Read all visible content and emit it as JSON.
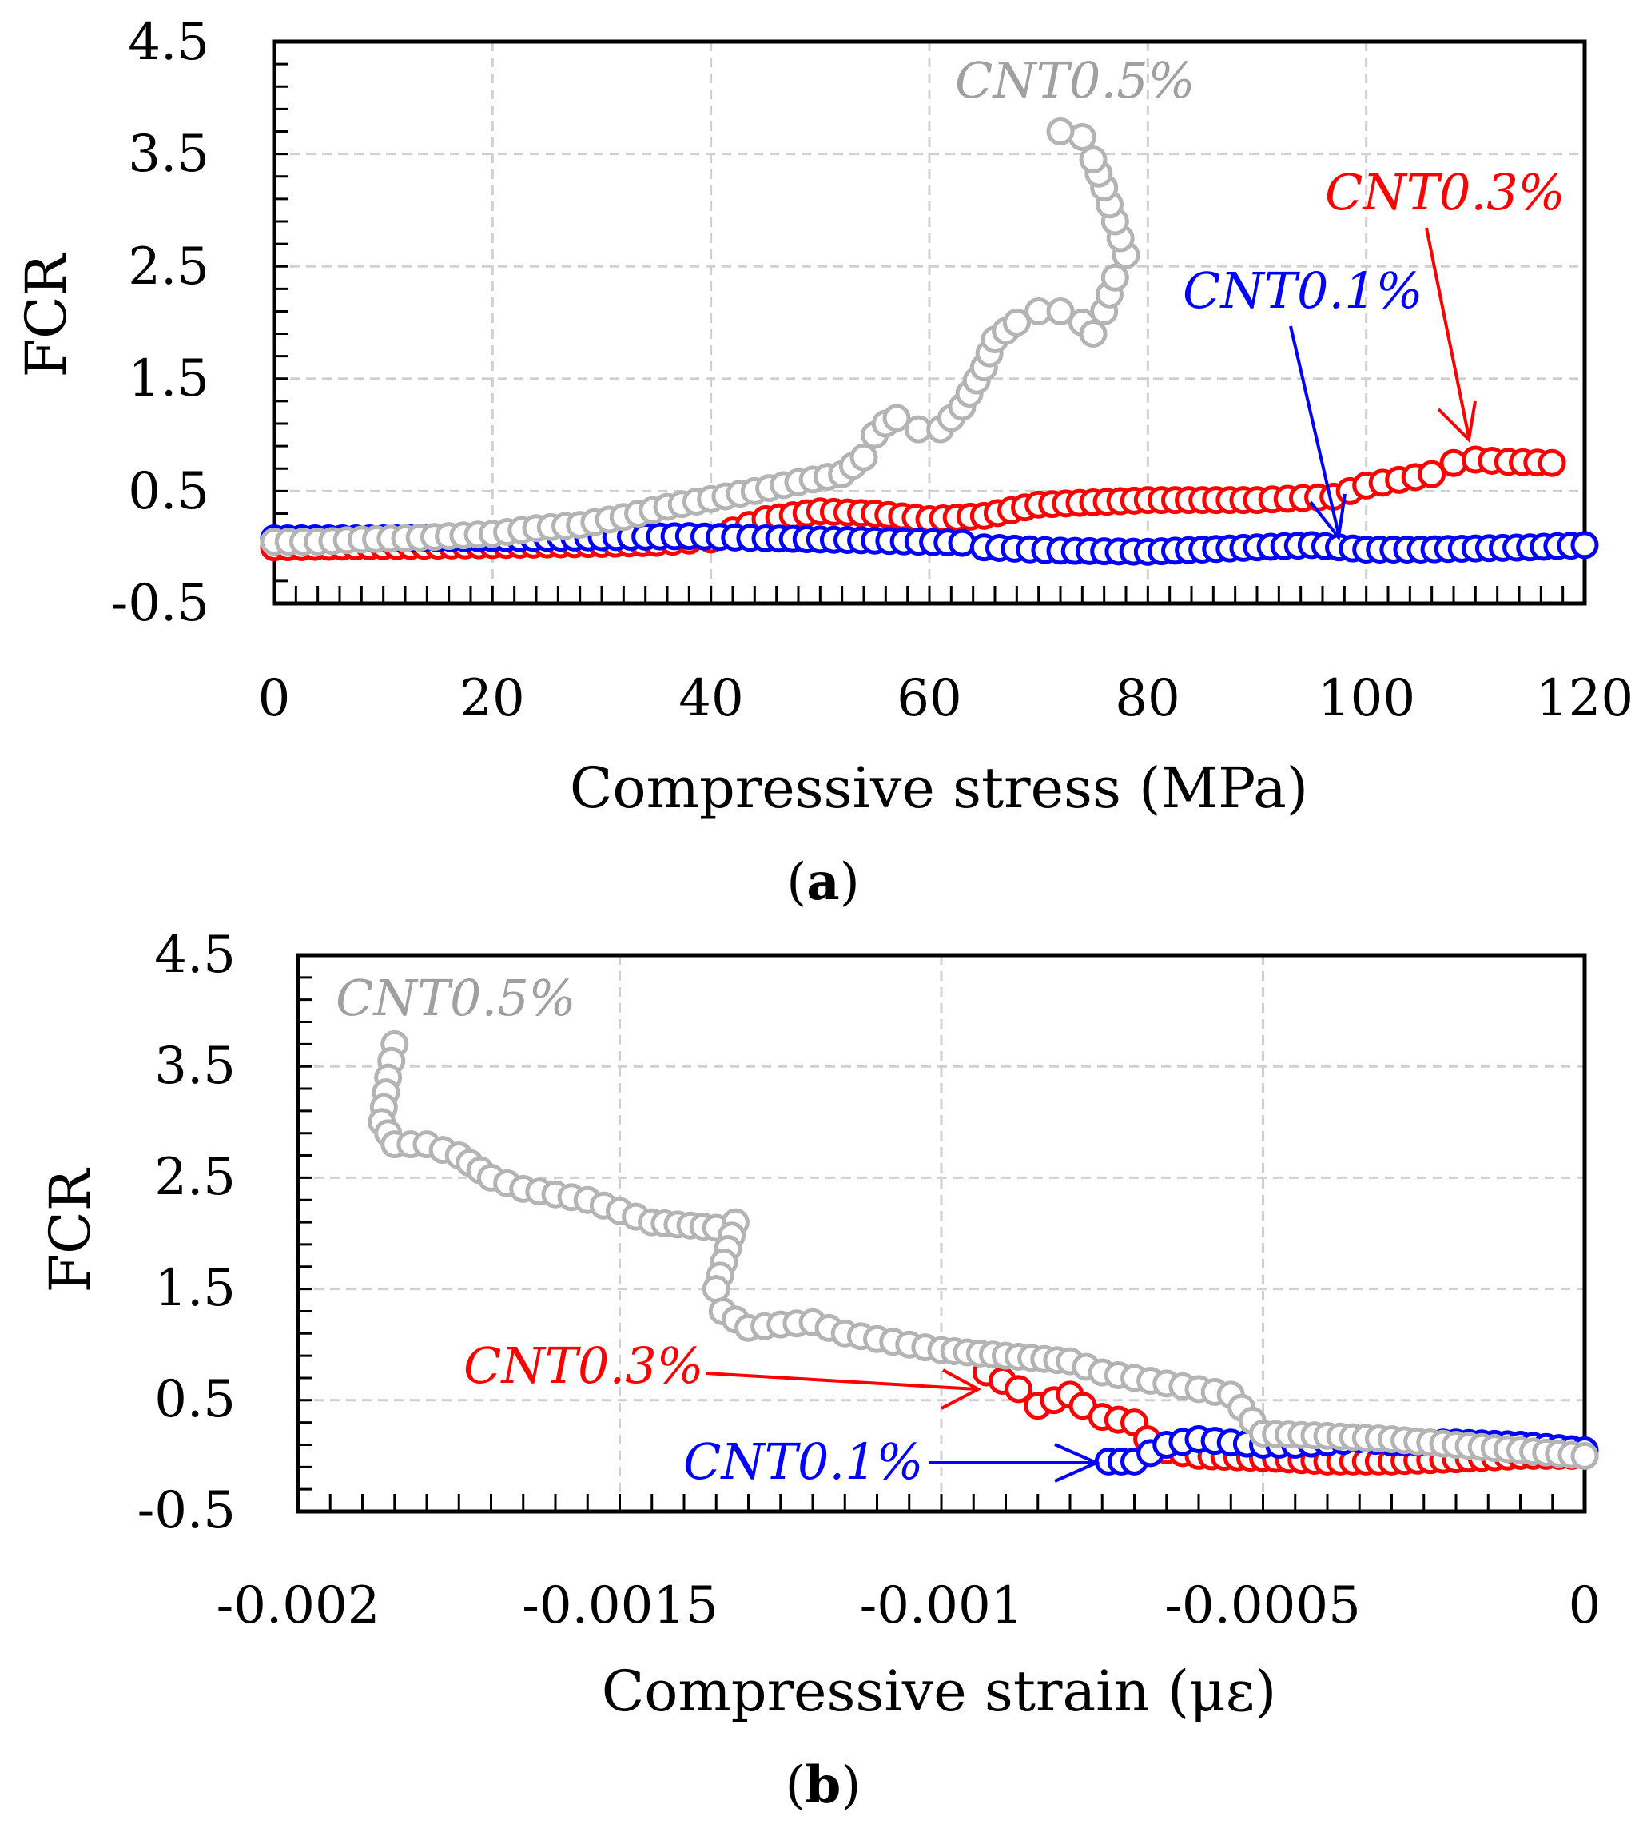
{
  "chart_data": [
    {
      "type": "scatter",
      "panel_label": "a",
      "xlabel": "Compressive  stress  (MPa)",
      "ylabel": "FCR",
      "xlim": [
        0,
        120
      ],
      "ylim": [
        -0.5,
        4.5
      ],
      "xticks": [
        "0",
        "20",
        "40",
        "60",
        "80",
        "100",
        "120"
      ],
      "yticks": [
        "-0.5",
        "0.5",
        "1.5",
        "2.5",
        "3.5",
        "4.5"
      ],
      "grid": true,
      "series": [
        {
          "name": "CNT0.5%",
          "color": "#b4b4b4",
          "points": [
            [
              0,
              0.05
            ],
            [
              4,
              0.05
            ],
            [
              8,
              0.07
            ],
            [
              12,
              0.08
            ],
            [
              16,
              0.1
            ],
            [
              20,
              0.12
            ],
            [
              24,
              0.17
            ],
            [
              28,
              0.2
            ],
            [
              32,
              0.27
            ],
            [
              36,
              0.36
            ],
            [
              40,
              0.43
            ],
            [
              44,
              0.5
            ],
            [
              48,
              0.58
            ],
            [
              52,
              0.65
            ],
            [
              54,
              0.8
            ],
            [
              55,
              1.0
            ],
            [
              56,
              1.1
            ],
            [
              57,
              1.15
            ],
            [
              59,
              1.05
            ],
            [
              61,
              1.05
            ],
            [
              63,
              1.25
            ],
            [
              65,
              1.6
            ],
            [
              66,
              1.85
            ],
            [
              68,
              2.0
            ],
            [
              70,
              2.1
            ],
            [
              72,
              2.1
            ],
            [
              74,
              2.0
            ],
            [
              75,
              1.9
            ],
            [
              76,
              2.1
            ],
            [
              77,
              2.4
            ],
            [
              78,
              2.6
            ],
            [
              77,
              2.9
            ],
            [
              76,
              3.2
            ],
            [
              75,
              3.45
            ],
            [
              74,
              3.65
            ],
            [
              72,
              3.7
            ]
          ]
        },
        {
          "name": "CNT0.3%",
          "color": "#ff0000",
          "points": [
            [
              0,
              0.0
            ],
            [
              10,
              0.01
            ],
            [
              20,
              0.02
            ],
            [
              30,
              0.03
            ],
            [
              35,
              0.04
            ],
            [
              38,
              0.06
            ],
            [
              40,
              0.07
            ],
            [
              42,
              0.15
            ],
            [
              45,
              0.25
            ],
            [
              50,
              0.32
            ],
            [
              55,
              0.3
            ],
            [
              60,
              0.25
            ],
            [
              65,
              0.28
            ],
            [
              70,
              0.38
            ],
            [
              80,
              0.42
            ],
            [
              90,
              0.42
            ],
            [
              97,
              0.45
            ],
            [
              100,
              0.55
            ],
            [
              103,
              0.6
            ],
            [
              106,
              0.65
            ],
            [
              108,
              0.75
            ],
            [
              110,
              0.78
            ],
            [
              113,
              0.76
            ],
            [
              117,
              0.75
            ]
          ]
        },
        {
          "name": "CNT0.1%",
          "color": "#0000ff",
          "points": [
            [
              0,
              0.08
            ],
            [
              10,
              0.08
            ],
            [
              20,
              0.08
            ],
            [
              30,
              0.09
            ],
            [
              38,
              0.1
            ],
            [
              45,
              0.08
            ],
            [
              55,
              0.06
            ],
            [
              63,
              0.04
            ],
            [
              65,
              0.0
            ],
            [
              72,
              -0.03
            ],
            [
              80,
              -0.04
            ],
            [
              90,
              0.0
            ],
            [
              95,
              0.02
            ],
            [
              100,
              -0.02
            ],
            [
              105,
              -0.02
            ],
            [
              110,
              -0.01
            ],
            [
              115,
              0.0
            ],
            [
              120,
              0.02
            ]
          ]
        }
      ],
      "annotations": [
        {
          "text": "CNT0.5%",
          "color": "#a0a0a0"
        },
        {
          "text": "CNT0.3%",
          "color": "#ff0000"
        },
        {
          "text": "CNT0.1%",
          "color": "#0000ff"
        }
      ]
    },
    {
      "type": "scatter",
      "panel_label": "b",
      "xlabel": "Compressive  strain  (με)",
      "ylabel": "FCR",
      "xlim": [
        -0.002,
        0
      ],
      "ylim": [
        -0.5,
        4.5
      ],
      "xticks": [
        "-0.002",
        "-0.0015",
        "-0.001",
        "-0.0005",
        "0"
      ],
      "yticks": [
        "-0.5",
        "0.5",
        "1.5",
        "2.5",
        "3.5",
        "4.5"
      ],
      "grid": true,
      "series": [
        {
          "name": "CNT0.5%",
          "color": "#b4b4b4",
          "points": [
            [
              -0.00185,
              3.7
            ],
            [
              -0.00186,
              3.4
            ],
            [
              -0.00187,
              3.0
            ],
            [
              -0.00185,
              2.8
            ],
            [
              -0.0018,
              2.8
            ],
            [
              -0.00175,
              2.7
            ],
            [
              -0.0017,
              2.5
            ],
            [
              -0.00165,
              2.4
            ],
            [
              -0.0016,
              2.35
            ],
            [
              -0.00155,
              2.3
            ],
            [
              -0.0015,
              2.2
            ],
            [
              -0.00145,
              2.1
            ],
            [
              -0.00135,
              2.05
            ],
            [
              -0.00132,
              2.1
            ],
            [
              -0.00135,
              1.5
            ],
            [
              -0.00134,
              1.3
            ],
            [
              -0.0013,
              1.15
            ],
            [
              -0.00125,
              1.18
            ],
            [
              -0.0012,
              1.2
            ],
            [
              -0.00115,
              1.1
            ],
            [
              -0.0011,
              1.05
            ],
            [
              -0.00105,
              1.0
            ],
            [
              -0.001,
              0.95
            ],
            [
              -0.0009,
              0.9
            ],
            [
              -0.0008,
              0.85
            ],
            [
              -0.00075,
              0.75
            ],
            [
              -0.0007,
              0.7
            ],
            [
              -0.00065,
              0.65
            ],
            [
              -0.0006,
              0.6
            ],
            [
              -0.00055,
              0.55
            ],
            [
              -0.0005,
              0.2
            ],
            [
              -0.0004,
              0.18
            ],
            [
              -0.0003,
              0.15
            ],
            [
              -0.0002,
              0.1
            ],
            [
              -0.0001,
              0.05
            ],
            [
              0,
              0.0
            ]
          ]
        },
        {
          "name": "CNT0.3%",
          "color": "#ff0000",
          "points": [
            [
              -0.00093,
              0.75
            ],
            [
              -0.00088,
              0.6
            ],
            [
              -0.00085,
              0.45
            ],
            [
              -0.0008,
              0.55
            ],
            [
              -0.00078,
              0.45
            ],
            [
              -0.00075,
              0.35
            ],
            [
              -0.0007,
              0.3
            ],
            [
              -0.00068,
              0.15
            ],
            [
              -0.00065,
              0.05
            ],
            [
              -0.0006,
              0.0
            ],
            [
              -0.0005,
              -0.02
            ],
            [
              -0.0004,
              -0.05
            ],
            [
              -0.0003,
              -0.05
            ],
            [
              -0.0002,
              -0.03
            ],
            [
              -0.0001,
              0.0
            ],
            [
              0,
              0.0
            ]
          ]
        },
        {
          "name": "CNT0.1%",
          "color": "#0000ff",
          "points": [
            [
              -0.00074,
              -0.05
            ],
            [
              -0.0007,
              -0.05
            ],
            [
              -0.00065,
              0.1
            ],
            [
              -0.0006,
              0.15
            ],
            [
              -0.00055,
              0.12
            ],
            [
              -0.0005,
              0.1
            ],
            [
              -0.00045,
              0.1
            ],
            [
              -0.0004,
              0.12
            ],
            [
              -0.00035,
              0.15
            ],
            [
              -0.0003,
              0.12
            ],
            [
              -0.0002,
              0.12
            ],
            [
              -0.0001,
              0.1
            ],
            [
              0,
              0.05
            ]
          ]
        }
      ],
      "annotations": [
        {
          "text": "CNT0.5%",
          "color": "#a0a0a0"
        },
        {
          "text": "CNT0.3%",
          "color": "#ff0000"
        },
        {
          "text": "CNT0.1%",
          "color": "#0000ff"
        }
      ]
    }
  ]
}
